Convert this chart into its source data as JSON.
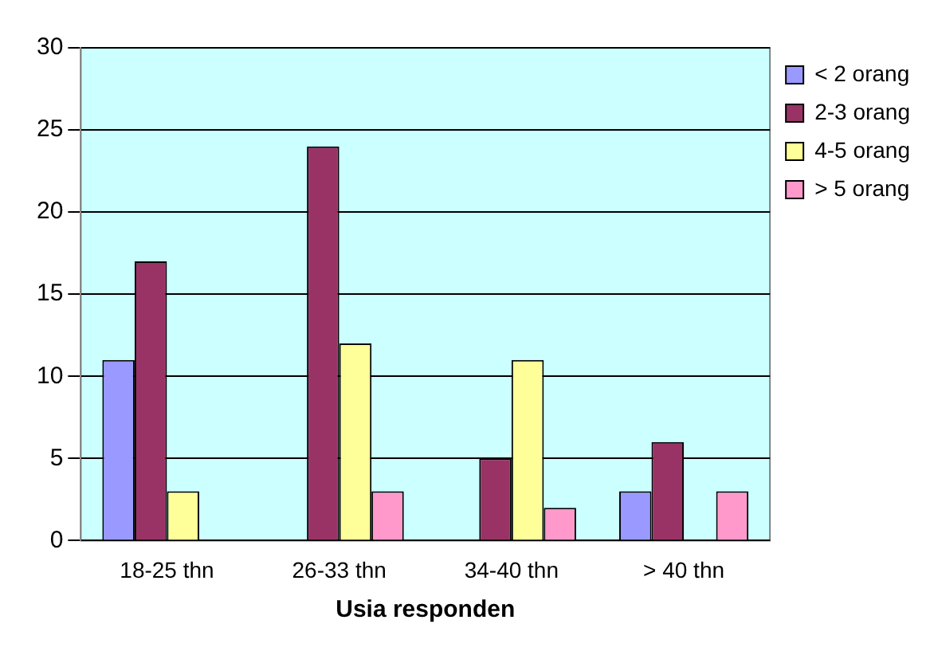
{
  "chart_data": {
    "type": "bar",
    "xlabel": "Usia responden",
    "categories": [
      "18-25 thn",
      "26-33 thn",
      "34-40 thn",
      "> 40 thn"
    ],
    "series": [
      {
        "name": "< 2 orang",
        "color": "#9999ff",
        "values": [
          11,
          0,
          0,
          3
        ]
      },
      {
        "name": "2-3 orang",
        "color": "#993366",
        "values": [
          17,
          24,
          5,
          6
        ]
      },
      {
        "name": "4-5 orang",
        "color": "#ffff99",
        "values": [
          3,
          12,
          11,
          0
        ]
      },
      {
        "name": "> 5 orang",
        "color": "#ff99cc",
        "values": [
          0,
          3,
          2,
          3
        ]
      }
    ],
    "ylim": [
      0,
      30
    ],
    "yticks": [
      0,
      5,
      10,
      15,
      20,
      25,
      30
    ],
    "grid": "y",
    "legend": "right"
  }
}
